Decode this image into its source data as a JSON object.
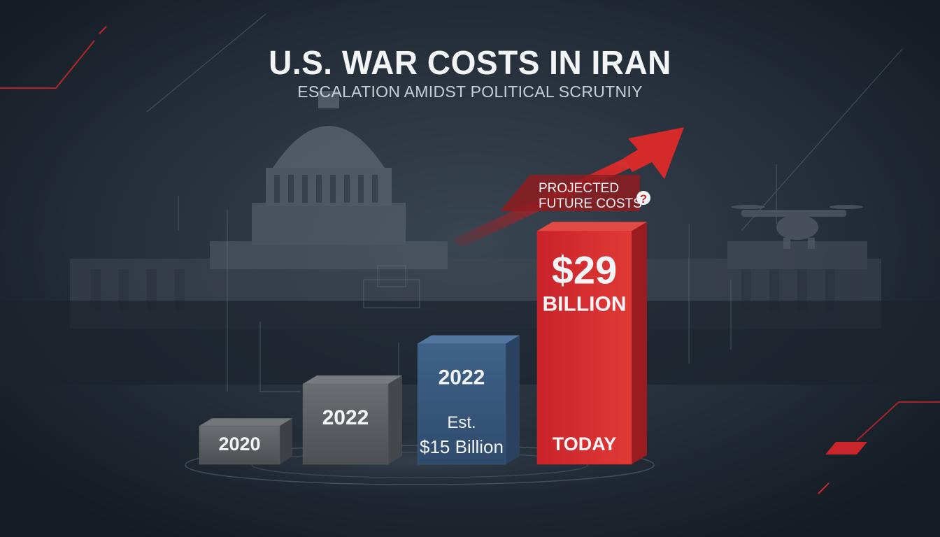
{
  "header": {
    "title": "U.S. WAR COSTS IN IRAN",
    "subtitle": "ESCALATION AMIDST POLITICAL SCRUTNIY"
  },
  "colors": {
    "background": "#1c2530",
    "bar_2020": "#5a5d61",
    "bar_2022a": "#606368",
    "bar_2022b": "#3e5f83",
    "bar_today": "#d42a2a",
    "arrow": "#c8262b",
    "text_light": "#f2f4f6"
  },
  "icons": {
    "background": "capitol-building-icon",
    "drone": "drone-icon",
    "arrow": "trend-up-arrow-icon",
    "question": "question-icon"
  },
  "annotation": {
    "line1": "PROJECTED",
    "line2": "FUTURE COSTS",
    "question_mark": "?"
  },
  "chart_data": {
    "type": "bar",
    "title": "U.S. WAR COSTS IN IRAN",
    "subtitle": "ESCALATION AMIDST POLITICAL SCRUTNIY",
    "categories": [
      "2020",
      "2022",
      "2022",
      "TODAY"
    ],
    "values": [
      3,
      10,
      15,
      29
    ],
    "value_units": "billion USD (2020 and first 2022 values estimated from relative bar height)",
    "bar_labels": [
      {
        "top": "",
        "bottom": "2020"
      },
      {
        "top": "2022",
        "bottom": ""
      },
      {
        "top": "2022",
        "bottom_line1": "Est.",
        "bottom_line2": "$15 Billion"
      },
      {
        "top_line1": "$29",
        "top_line2": "BILLION",
        "bottom": "TODAY"
      }
    ],
    "ylim": [
      0,
      30
    ],
    "grid": false,
    "legend": "none"
  }
}
